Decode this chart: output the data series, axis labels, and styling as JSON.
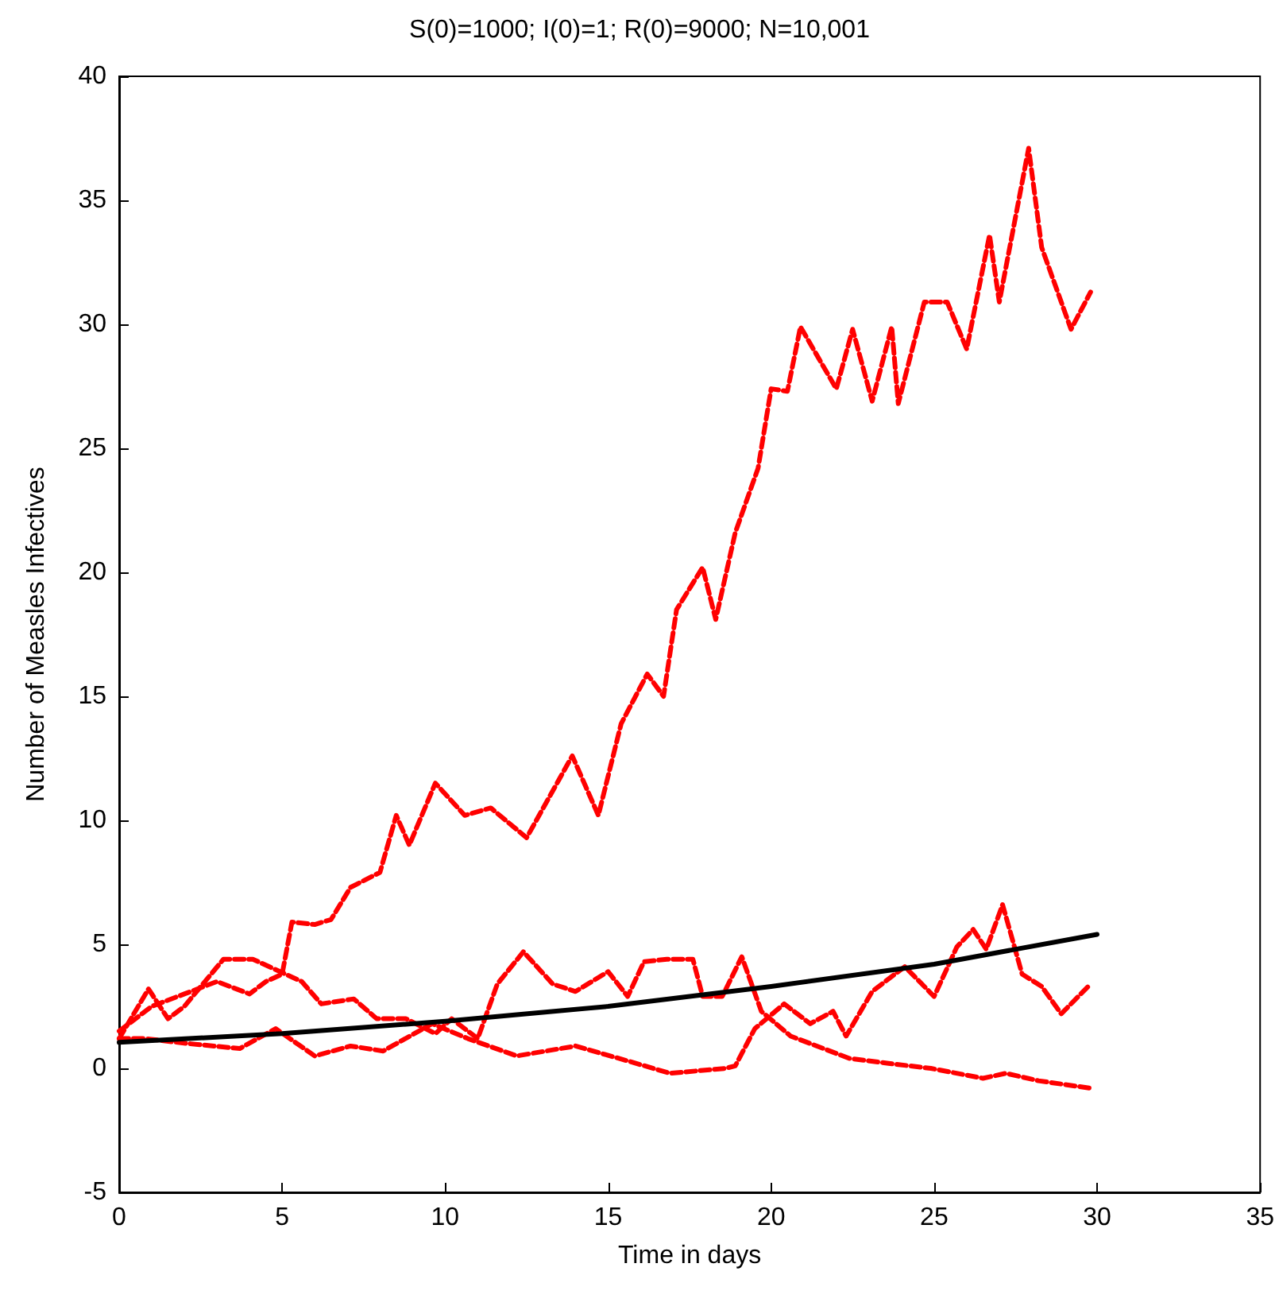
{
  "chart_data": {
    "type": "line",
    "title": "S(0)=1000; I(0)=1; R(0)=9000; N=10,001",
    "xlabel": "Time in days",
    "ylabel": "Number of Measles Infectives",
    "xlim": [
      0,
      35
    ],
    "xticks": [
      0,
      5,
      10,
      15,
      20,
      25,
      30,
      35
    ],
    "ylim": [
      -5,
      40
    ],
    "yticks": [
      -5,
      0,
      5,
      10,
      15,
      20,
      25,
      30,
      35,
      40
    ],
    "grid": false,
    "marker": "none",
    "series": [
      {
        "color": "#ff0000",
        "line_style": "dashed",
        "x": [
          0,
          0.5,
          1,
          2,
          3,
          4,
          4.5,
          5,
          5.3,
          6,
          6.5,
          7.1,
          8,
          8.5,
          8.9,
          9.7,
          10.6,
          11.4,
          12.5,
          13.9,
          14.7,
          15.4,
          16.2,
          16.7,
          17.1,
          17.9,
          18.3,
          18.9,
          19.6,
          20,
          20.5,
          20.9,
          22,
          22.5,
          23.1,
          23.7,
          23.9,
          24.7,
          25.4,
          26,
          26.7,
          27,
          27.9,
          28.3,
          29.2,
          29.8
        ],
        "values": [
          1.5,
          2,
          2.5,
          3,
          3.5,
          3,
          3.5,
          3.8,
          5.9,
          5.8,
          6,
          7.3,
          7.9,
          10.2,
          9,
          11.5,
          10.2,
          10.5,
          9.3,
          12.6,
          10.2,
          13.9,
          15.9,
          15,
          18.5,
          20.2,
          18.1,
          21.6,
          24.2,
          27.4,
          27.3,
          29.9,
          27.4,
          29.8,
          26.9,
          29.9,
          26.8,
          30.9,
          30.9,
          29,
          33.6,
          30.9,
          37.1,
          33.1,
          29.8,
          31.3
        ]
      },
      {
        "color": "#ff0000",
        "line_style": "dashed",
        "x": [
          0,
          0.9,
          1.5,
          2,
          3.2,
          4.1,
          5.6,
          6.2,
          7.2,
          7.9,
          8.8,
          9.7,
          10.2,
          11,
          11.6,
          12.4,
          13.3,
          14,
          15,
          15.6,
          16.1,
          16.8,
          17.6,
          17.9,
          18.5,
          19.1,
          19.7,
          20.6,
          21.6,
          22.4,
          23.6,
          24.9,
          26.5,
          27.2,
          28.2,
          29.8
        ],
        "values": [
          1.2,
          3.2,
          2,
          2.5,
          4.4,
          4.4,
          3.5,
          2.6,
          2.8,
          2,
          2,
          1.4,
          2,
          1.2,
          3.4,
          4.7,
          3.4,
          3.1,
          3.9,
          2.9,
          4.3,
          4.4,
          4.4,
          2.9,
          2.9,
          4.5,
          2.3,
          1.3,
          0.8,
          0.4,
          0.2,
          0,
          -0.4,
          -0.2,
          -0.5,
          -0.8
        ]
      },
      {
        "color": "#ff0000",
        "line_style": "dashed",
        "x": [
          0,
          0.8,
          2.1,
          3.7,
          4.8,
          6,
          7.1,
          8.1,
          9.6,
          10.7,
          12.2,
          14,
          15.6,
          16.9,
          18.6,
          18.9,
          19.5,
          20.4,
          21.2,
          21.9,
          22.3,
          23.1,
          24.1,
          25,
          25.7,
          26.2,
          26.6,
          27.1,
          27.7,
          28.3,
          28.9,
          29.8
        ],
        "values": [
          1.2,
          1.2,
          1,
          0.8,
          1.6,
          0.5,
          0.9,
          0.7,
          1.8,
          1.2,
          0.5,
          0.9,
          0.3,
          -0.2,
          0,
          0.1,
          1.6,
          2.6,
          1.8,
          2.3,
          1.3,
          3.1,
          4.1,
          2.9,
          4.9,
          5.6,
          4.8,
          6.6,
          3.8,
          3.3,
          2.2,
          3.4
        ]
      },
      {
        "color": "#000000",
        "line_style": "solid",
        "x": [
          0,
          5,
          10,
          15,
          20,
          25,
          30
        ],
        "values": [
          1.05,
          1.4,
          1.9,
          2.5,
          3.3,
          4.2,
          5.4
        ]
      }
    ]
  }
}
